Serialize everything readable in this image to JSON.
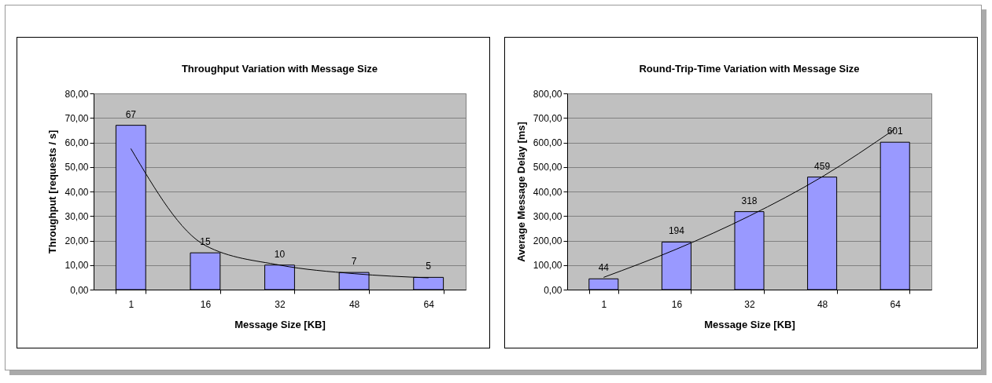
{
  "chart_data": [
    {
      "type": "bar",
      "title": "Throughput Variation with Message Size",
      "xlabel": "Message Size [KB]",
      "ylabel": "Throughput [requests / s]",
      "categories": [
        "1",
        "16",
        "32",
        "48",
        "64"
      ],
      "series": [
        {
          "color": "#9999ff",
          "values": [
            67,
            15,
            10,
            7,
            5
          ],
          "value_labels": [
            "67",
            "15",
            "10",
            "7",
            "5"
          ]
        },
        {
          "type": "line",
          "color": "#000000",
          "values": [
            57.5,
            18,
            10,
            6.5,
            4.8
          ]
        }
      ],
      "ylim": [
        0,
        80
      ],
      "yticks": [
        {
          "value": 0,
          "label": "0,00"
        },
        {
          "value": 10,
          "label": "10,00"
        },
        {
          "value": 20,
          "label": "20,00"
        },
        {
          "value": 30,
          "label": "30,00"
        },
        {
          "value": 40,
          "label": "40,00"
        },
        {
          "value": 50,
          "label": "50,00"
        },
        {
          "value": 60,
          "label": "60,00"
        },
        {
          "value": 70,
          "label": "70,00"
        },
        {
          "value": 80,
          "label": "80,00"
        }
      ],
      "grid": "y"
    },
    {
      "type": "bar",
      "title": "Round-Trip-Time Variation with Message Size",
      "xlabel": "Message Size [KB]",
      "ylabel": "Average Message Delay [ms]",
      "categories": [
        "1",
        "16",
        "32",
        "48",
        "64"
      ],
      "series": [
        {
          "color": "#9999ff",
          "values": [
            44,
            194,
            318,
            459,
            601
          ],
          "value_labels": [
            "44",
            "194",
            "318",
            "459",
            "601"
          ]
        },
        {
          "type": "line",
          "color": "#000000",
          "values": [
            50,
            165,
            300,
            460,
            655
          ]
        }
      ],
      "ylim": [
        0,
        800
      ],
      "yticks": [
        {
          "value": 0,
          "label": "0,00"
        },
        {
          "value": 100,
          "label": "100,00"
        },
        {
          "value": 200,
          "label": "200,00"
        },
        {
          "value": 300,
          "label": "300,00"
        },
        {
          "value": 400,
          "label": "400,00"
        },
        {
          "value": 500,
          "label": "500,00"
        },
        {
          "value": 600,
          "label": "600,00"
        },
        {
          "value": 700,
          "label": "700,00"
        },
        {
          "value": 800,
          "label": "800,00"
        }
      ],
      "grid": "y"
    }
  ]
}
